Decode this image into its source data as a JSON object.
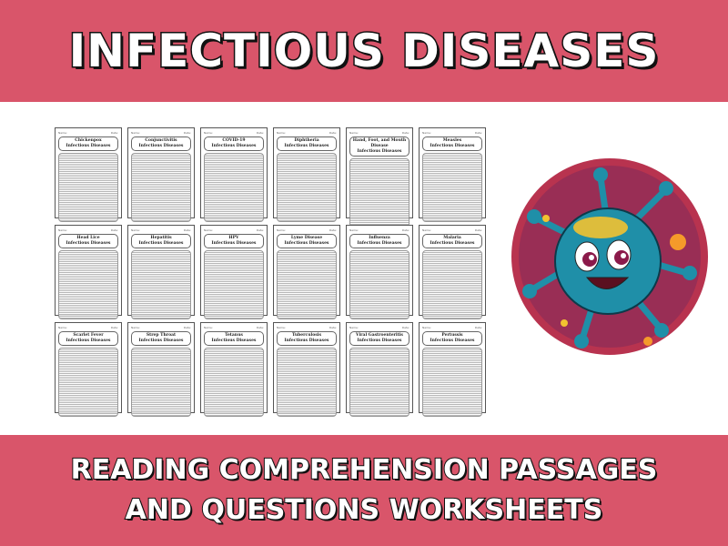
{
  "header": {
    "title": "INFECTIOUS DISEASES"
  },
  "footer": {
    "line1": "READING COMPREHENSION PASSAGES",
    "line2": "AND QUESTIONS WORKSHEETS"
  },
  "worksheet_labels": {
    "name": "Name:",
    "date": "Date:",
    "subtitle": "Infectious Diseases"
  },
  "worksheets": [
    "Chickenpox",
    "Conjunctivitis",
    "COVID-19",
    "Diphtheria",
    "Hand, Foot, and Mouth Disease",
    "Measles",
    "Head Lice",
    "Hepatitis",
    "HPV",
    "Lyme Disease",
    "Influenza",
    "Malaria",
    "Scarlet Fever",
    "Strep Throat",
    "Tetanus",
    "Tuberculosis",
    "Viral Gastroenteritis",
    "Pertussis"
  ],
  "colors": {
    "band": "#d9556a",
    "virus": "#1f8fa8",
    "circle": "#b8334f"
  }
}
